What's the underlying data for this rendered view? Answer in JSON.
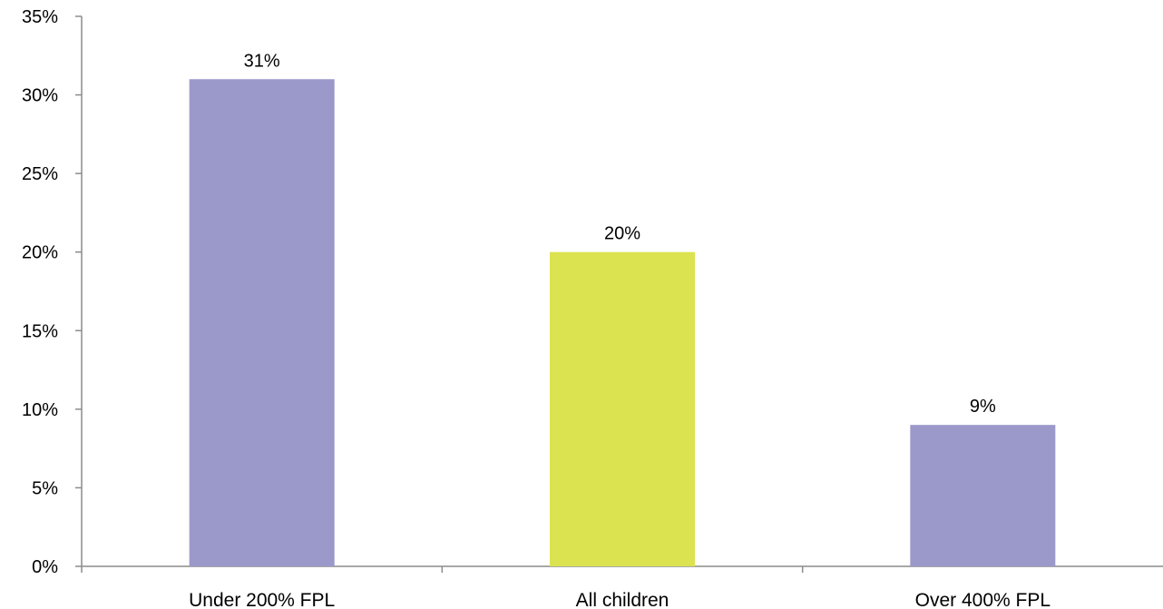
{
  "chart_data": {
    "type": "bar",
    "title": "",
    "xlabel": "",
    "ylabel": "",
    "categories": [
      "Under 200% FPL",
      "All children",
      "Over 400% FPL"
    ],
    "values": [
      31,
      20,
      9
    ],
    "data_labels": [
      "31%",
      "20%",
      "9%"
    ],
    "bar_colors": [
      "#9b98ca",
      "#dbe350",
      "#9b98ca"
    ],
    "ylim": [
      0,
      35
    ],
    "y_ticks": [
      0,
      5,
      10,
      15,
      20,
      25,
      30,
      35
    ],
    "y_tick_labels": [
      "0%",
      "5%",
      "10%",
      "15%",
      "20%",
      "25%",
      "30%",
      "35%"
    ],
    "grid": false,
    "legend": "none"
  }
}
